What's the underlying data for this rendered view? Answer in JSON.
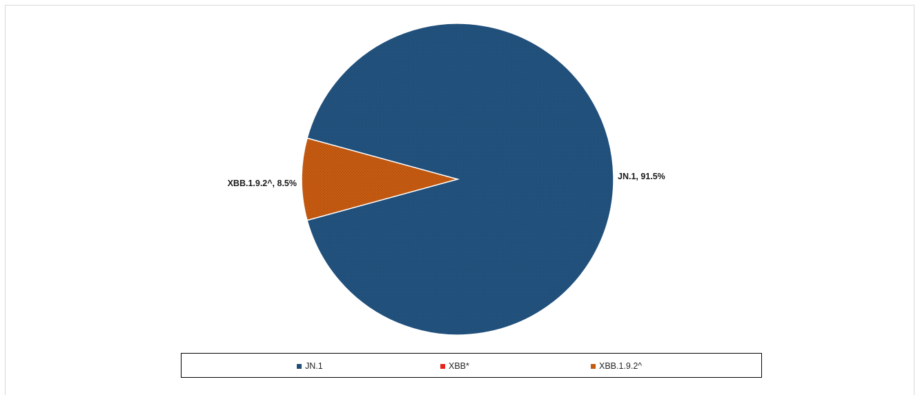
{
  "chart_data": {
    "type": "pie",
    "title": "",
    "slices": [
      {
        "name": "JN.1",
        "value": 91.5,
        "label": "JN.1, 91.5%",
        "color": "#1f4e79"
      },
      {
        "name": "XBB*",
        "value": 0,
        "label": "",
        "color": "#e8231b"
      },
      {
        "name": "XBB.1.9.2^",
        "value": 8.5,
        "label": "XBB.1.9.2^, 8.5%",
        "color": "#c55a11"
      }
    ],
    "legend_position": "bottom",
    "legend": [
      {
        "label": "JN.1",
        "color": "#1f4e79"
      },
      {
        "label": "XBB*",
        "color": "#e8231b"
      },
      {
        "label": "XBB.1.9.2^",
        "color": "#c55a11"
      }
    ]
  }
}
